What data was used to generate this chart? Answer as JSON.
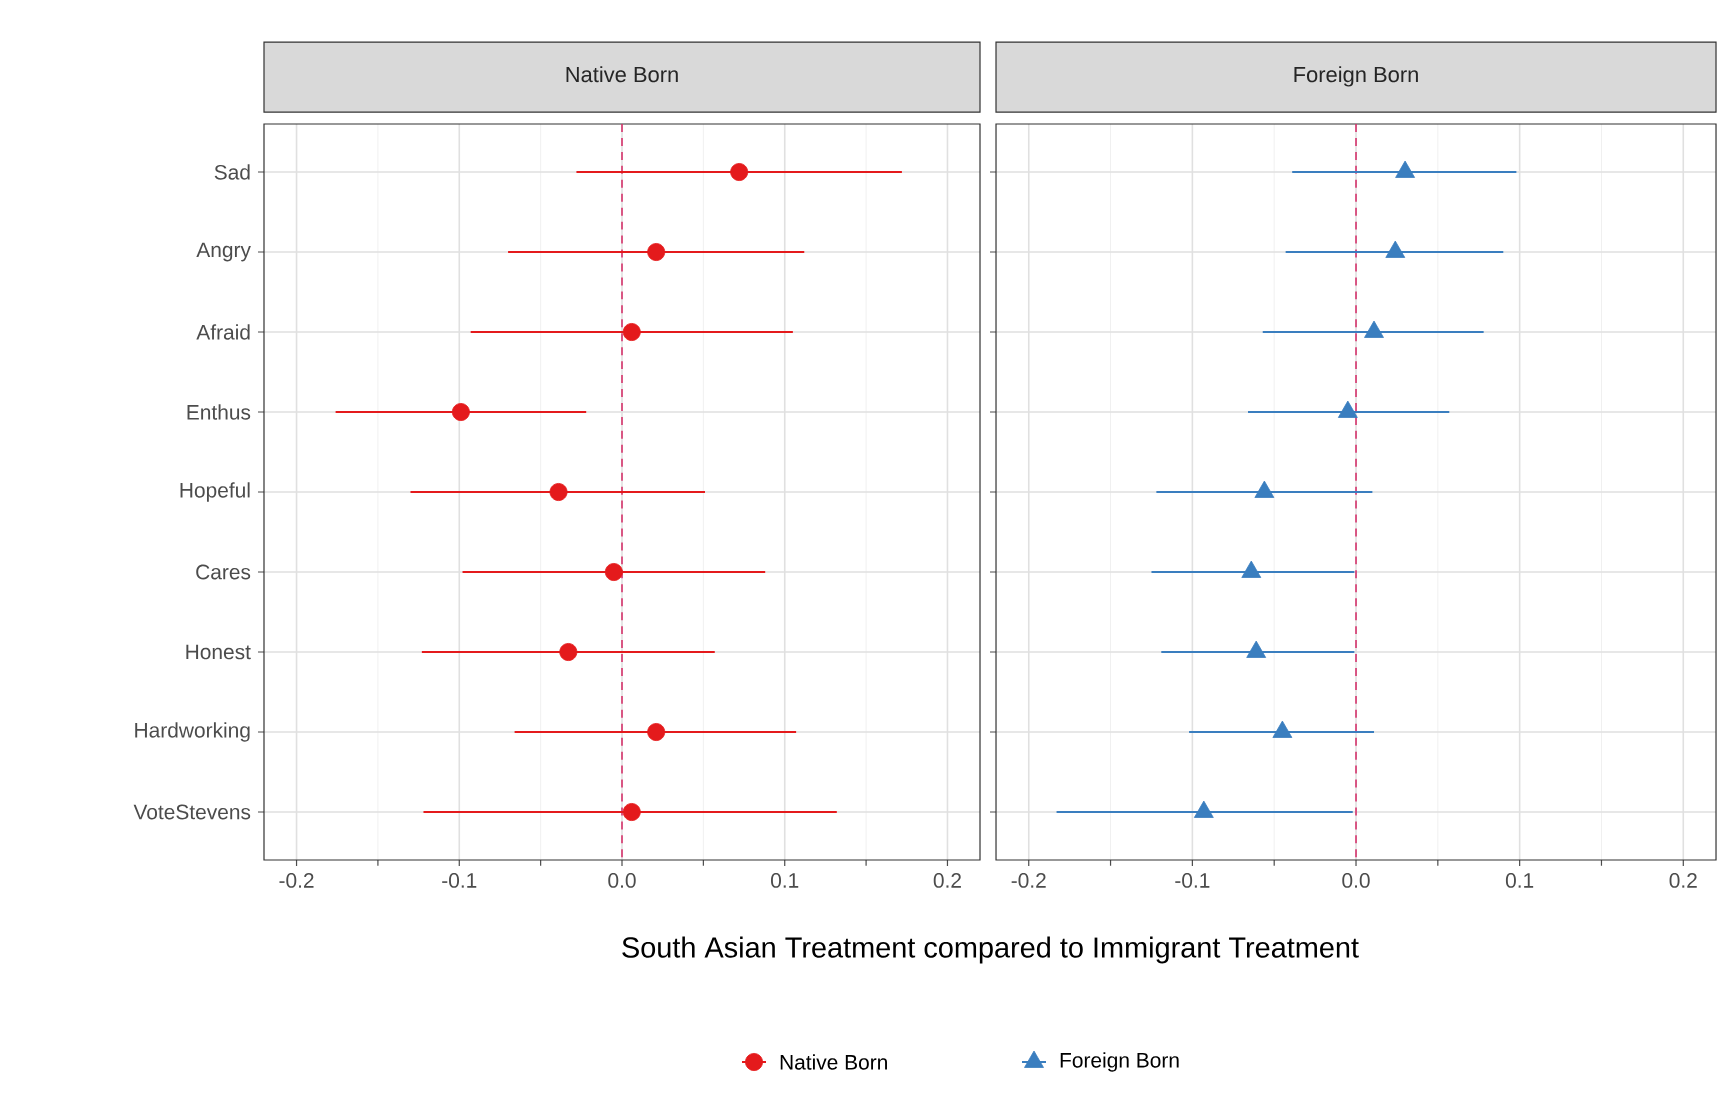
{
  "chart_data": [
    {
      "type": "scatter",
      "orientation": "horizontal",
      "title": "Native Born",
      "xlabel": "South Asian Treatment compared to Immigrant Treatment",
      "categories": [
        "Sad",
        "Angry",
        "Afraid",
        "Enthus",
        "Hopeful",
        "Cares",
        "Honest",
        "Hardworking",
        "VoteStevens"
      ],
      "series": [
        {
          "name": "Native Born",
          "color": "#e41a1c",
          "values": [
            0.072,
            0.021,
            0.006,
            -0.099,
            -0.039,
            -0.005,
            -0.033,
            0.021,
            0.006
          ],
          "errors": [
            [
              -0.028,
              0.172
            ],
            [
              -0.07,
              0.112
            ],
            [
              -0.093,
              0.105
            ],
            [
              -0.176,
              -0.022
            ],
            [
              -0.13,
              0.051
            ],
            [
              -0.098,
              0.088
            ],
            [
              -0.123,
              0.057
            ],
            [
              -0.066,
              0.107
            ],
            [
              -0.122,
              0.132
            ]
          ]
        }
      ],
      "xlim": [
        -0.22,
        0.22
      ],
      "xticks": [
        -0.2,
        -0.1,
        {
          "value": 0,
          "label": "0.0"
        },
        0.1,
        0.2
      ],
      "ref_lines": [
        {
          "axis": "x",
          "value": 0,
          "color": "#d6336c",
          "line_style": "dashed"
        }
      ],
      "grid": true,
      "legend": "bottom",
      "marker": "circle"
    },
    {
      "type": "scatter",
      "orientation": "horizontal",
      "title": "Foreign Born",
      "categories": [
        null,
        null,
        null,
        null,
        null,
        null,
        null,
        null,
        null
      ],
      "series": [
        {
          "name": "Foreign Born",
          "color": "#3a7ebf",
          "values": [
            0.03,
            0.024,
            0.011,
            -0.005,
            -0.056,
            -0.064,
            -0.061,
            -0.045,
            -0.093
          ],
          "errors": [
            [
              -0.039,
              0.098
            ],
            [
              -0.043,
              0.09
            ],
            [
              -0.057,
              0.078
            ],
            [
              -0.066,
              0.057
            ],
            [
              -0.122,
              0.01
            ],
            [
              -0.125,
              -0.001
            ],
            [
              -0.119,
              -0.001
            ],
            [
              -0.102,
              0.011
            ],
            [
              -0.183,
              -0.002
            ]
          ]
        }
      ],
      "xlim": [
        -0.22,
        0.22
      ],
      "xticks": [
        -0.2,
        -0.1,
        {
          "value": 0,
          "label": "0.0"
        },
        0.1,
        0.2
      ],
      "ref_lines": [
        {
          "axis": "x",
          "value": 0,
          "color": "#d6336c",
          "line_style": "dashed"
        }
      ],
      "grid": true,
      "legend": "bottom",
      "marker": "triangle",
      "tick_labels": "x"
    }
  ]
}
